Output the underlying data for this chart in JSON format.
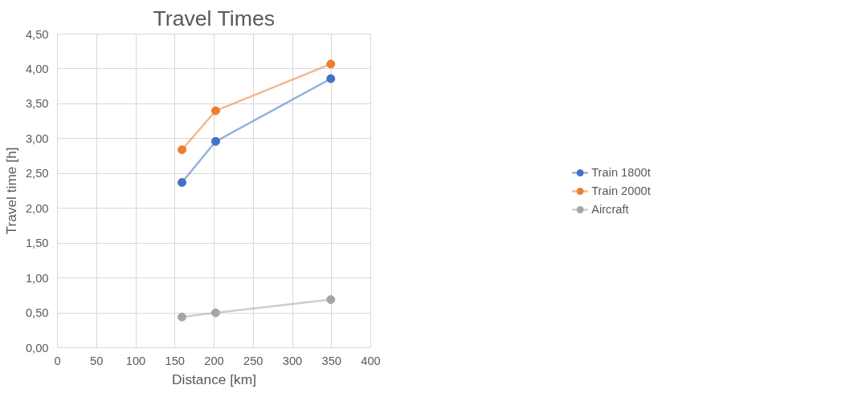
{
  "chart_data": {
    "type": "line",
    "title": "Travel Times",
    "xlabel": "Distance [km]",
    "ylabel": "Travel time [h]",
    "x": [
      159,
      202,
      349
    ],
    "series": [
      {
        "name": "Train 1800t",
        "color": "#4472c4",
        "values": [
          2.37,
          2.96,
          3.86
        ]
      },
      {
        "name": "Train 2000t",
        "color": "#ed7d31",
        "values": [
          2.84,
          3.4,
          4.07
        ]
      },
      {
        "name": "Aircraft",
        "color": "#a5a5a5",
        "values": [
          0.44,
          0.5,
          0.69
        ]
      }
    ],
    "xlim": [
      0,
      400
    ],
    "xticks": [
      0,
      50,
      100,
      150,
      200,
      250,
      300,
      350,
      400
    ],
    "ylim": [
      0,
      4.5
    ],
    "yticks": [
      {
        "value": 0,
        "label": "0,00"
      },
      {
        "value": 0.5,
        "label": "0,50"
      },
      {
        "value": 1,
        "label": "1,00"
      },
      {
        "value": 1.5,
        "label": "1,50"
      },
      {
        "value": 2,
        "label": "2,00"
      },
      {
        "value": 2.5,
        "label": "2,50"
      },
      {
        "value": 3,
        "label": "3,00"
      },
      {
        "value": 3.5,
        "label": "3,50"
      },
      {
        "value": 4,
        "label": "4,00"
      },
      {
        "value": 4.5,
        "label": "4,50"
      }
    ],
    "grid": true,
    "legend": "right",
    "marker": "circle",
    "line_style": "solid"
  }
}
